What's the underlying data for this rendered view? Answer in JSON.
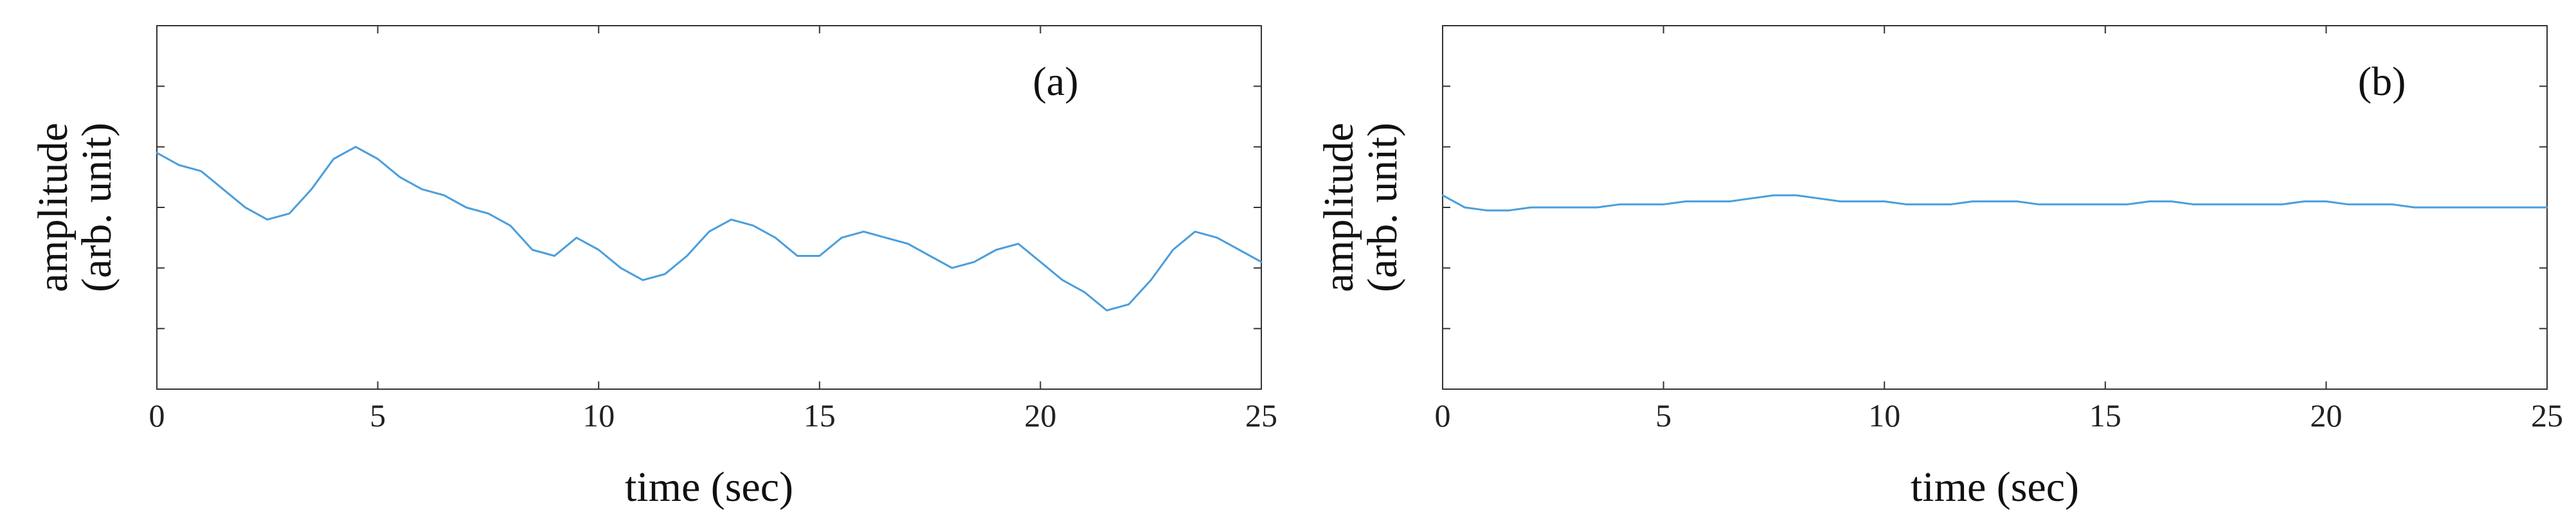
{
  "figure": {
    "panels": [
      {
        "label": "(a)",
        "xlabel": "time (sec)",
        "ylabel_line1": "amplitude",
        "ylabel_line2": "(arb. unit)"
      },
      {
        "label": "(b)",
        "xlabel": "time (sec)",
        "ylabel_line1": "amplitude",
        "ylabel_line2": "(arb. unit)"
      }
    ]
  },
  "chart_data": [
    {
      "type": "line",
      "title": "",
      "panel_label": "(a)",
      "xlabel": "time (sec)",
      "ylabel": "amplitude (arb. unit)",
      "xlim": [
        0,
        25
      ],
      "ylim": [
        0,
        6
      ],
      "xticks": [
        0,
        5,
        10,
        15,
        20,
        25
      ],
      "yticks_labeled": false,
      "grid": false,
      "line_color": "#4a9edb",
      "series": [
        {
          "x": [
            0,
            0.5,
            1,
            1.5,
            2,
            2.5,
            3,
            3.5,
            4,
            4.5,
            5,
            5.5,
            6,
            6.5,
            7,
            7.5,
            8,
            8.5,
            9,
            9.5,
            10,
            10.5,
            11,
            11.5,
            12,
            12.5,
            13,
            13.5,
            14,
            14.5,
            15,
            15.5,
            16,
            16.5,
            17,
            17.5,
            18,
            18.5,
            19,
            19.5,
            20,
            20.5,
            21,
            21.5,
            22,
            22.5,
            23,
            23.5,
            24,
            24.5,
            25
          ],
          "y": [
            3.9,
            3.7,
            3.6,
            3.3,
            3.0,
            2.8,
            2.9,
            3.3,
            3.8,
            4.0,
            3.8,
            3.5,
            3.3,
            3.2,
            3.0,
            2.9,
            2.7,
            2.3,
            2.2,
            2.5,
            2.3,
            2.0,
            1.8,
            1.9,
            2.2,
            2.6,
            2.8,
            2.7,
            2.5,
            2.2,
            2.2,
            2.5,
            2.6,
            2.5,
            2.4,
            2.2,
            2.0,
            2.1,
            2.3,
            2.4,
            2.1,
            1.8,
            1.6,
            1.3,
            1.4,
            1.8,
            2.3,
            2.6,
            2.5,
            2.3,
            2.1
          ]
        }
      ]
    },
    {
      "type": "line",
      "title": "",
      "panel_label": "(b)",
      "xlabel": "time (sec)",
      "ylabel": "amplitude (arb. unit)",
      "xlim": [
        0,
        25
      ],
      "ylim": [
        0,
        6
      ],
      "xticks": [
        0,
        5,
        10,
        15,
        20,
        25
      ],
      "yticks_labeled": false,
      "grid": false,
      "line_color": "#4a9edb",
      "series": [
        {
          "x": [
            0,
            0.5,
            1,
            1.5,
            2,
            2.5,
            3,
            3.5,
            4,
            4.5,
            5,
            5.5,
            6,
            6.5,
            7,
            7.5,
            8,
            8.5,
            9,
            9.5,
            10,
            10.5,
            11,
            11.5,
            12,
            12.5,
            13,
            13.5,
            14,
            14.5,
            15,
            15.5,
            16,
            16.5,
            17,
            17.5,
            18,
            18.5,
            19,
            19.5,
            20,
            20.5,
            21,
            21.5,
            22,
            22.5,
            23,
            23.5,
            24,
            24.5,
            25
          ],
          "y": [
            3.2,
            3.0,
            2.95,
            2.95,
            3.0,
            3.0,
            3.0,
            3.0,
            3.05,
            3.05,
            3.05,
            3.1,
            3.1,
            3.1,
            3.15,
            3.2,
            3.2,
            3.15,
            3.1,
            3.1,
            3.1,
            3.05,
            3.05,
            3.05,
            3.1,
            3.1,
            3.1,
            3.05,
            3.05,
            3.05,
            3.05,
            3.05,
            3.1,
            3.1,
            3.05,
            3.05,
            3.05,
            3.05,
            3.05,
            3.1,
            3.1,
            3.05,
            3.05,
            3.05,
            3.0,
            3.0,
            3.0,
            3.0,
            3.0,
            3.0,
            3.0
          ]
        }
      ]
    }
  ]
}
